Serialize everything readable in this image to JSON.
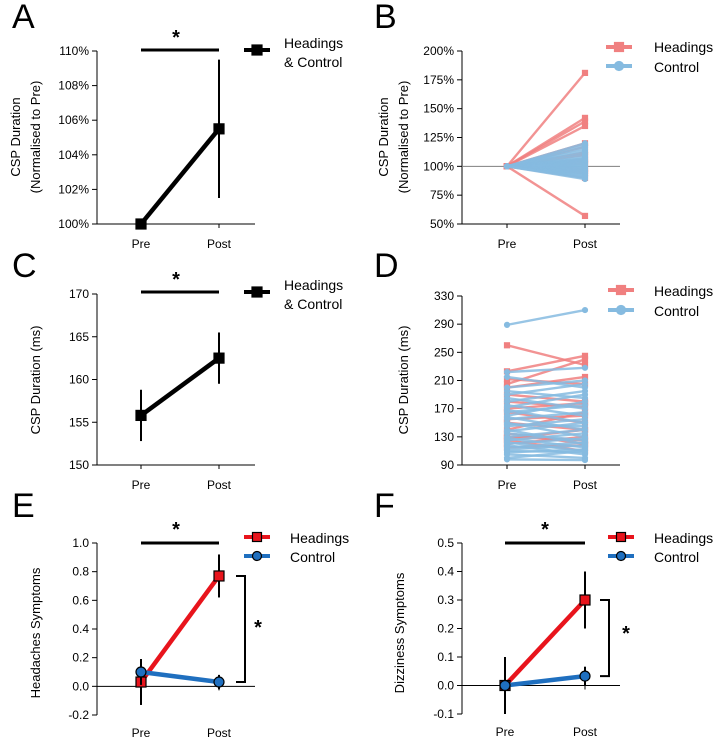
{
  "colors": {
    "black": "#000000",
    "headings": "#e8141c",
    "control": "#1f6fbf",
    "headings_light": "#f08080",
    "control_light": "#86bbe0",
    "headings_marker": "#ee2020",
    "control_marker": "#2a7fd1"
  },
  "chart_data": [
    {
      "panel": "A",
      "type": "line",
      "ylabel": "CSP Duration (Normalised to Pre)",
      "categories": [
        "Pre",
        "Post"
      ],
      "yticks": [
        "100%",
        "102%",
        "104%",
        "106%",
        "108%",
        "110%"
      ],
      "ylim": [
        100,
        110
      ],
      "series": [
        {
          "name": "Headings & Control",
          "values": [
            100.0,
            105.5
          ],
          "err": [
            0,
            4.0
          ],
          "color": "#000000",
          "marker": "square"
        }
      ],
      "legend": [
        "Headings",
        "& Control"
      ],
      "significance": [
        {
          "label": "*",
          "between": [
            "Pre",
            "Post"
          ]
        }
      ]
    },
    {
      "panel": "B",
      "type": "line",
      "ylabel": "CSP Duration (Normalised to Pre)",
      "categories": [
        "Pre",
        "Post"
      ],
      "yticks": [
        "50%",
        "75%",
        "100%",
        "125%",
        "150%",
        "175%",
        "200%"
      ],
      "ylim": [
        50,
        200
      ],
      "reference_line": 100,
      "series": [
        {
          "name": "Headings",
          "style": "individual",
          "color": "#f08080",
          "marker": "square",
          "post_values": [
            181,
            142,
            139,
            135,
            120,
            117,
            112,
            110,
            106,
            104,
            102,
            98,
            96,
            94,
            90,
            57
          ]
        },
        {
          "name": "Control",
          "style": "individual",
          "color": "#86bbe0",
          "marker": "circle",
          "post_values": [
            120,
            118,
            116,
            114,
            112,
            110,
            108,
            107,
            106,
            105,
            104,
            103,
            102,
            101,
            100,
            99,
            98,
            97,
            96,
            95,
            94,
            93,
            92,
            91,
            90,
            89
          ]
        }
      ],
      "legend": [
        "Headings",
        "Control"
      ]
    },
    {
      "panel": "C",
      "type": "line",
      "ylabel": "CSP Duration (ms)",
      "categories": [
        "Pre",
        "Post"
      ],
      "yticks": [
        "150",
        "155",
        "160",
        "165",
        "170"
      ],
      "ylim": [
        150,
        170
      ],
      "series": [
        {
          "name": "Headings & Control",
          "values": [
            155.8,
            162.5
          ],
          "err": [
            3.0,
            3.0
          ],
          "color": "#000000",
          "marker": "square"
        }
      ],
      "legend": [
        "Headings",
        "& Control"
      ],
      "significance": [
        {
          "label": "*",
          "between": [
            "Pre",
            "Post"
          ]
        }
      ]
    },
    {
      "panel": "D",
      "type": "line",
      "ylabel": "CSP Duration (ms)",
      "categories": [
        "Pre",
        "Post"
      ],
      "yticks": [
        "90",
        "130",
        "170",
        "210",
        "250",
        "290",
        "330"
      ],
      "ylim": [
        90,
        330
      ],
      "series": [
        {
          "name": "Headings",
          "style": "individual",
          "color": "#f08080",
          "marker": "square",
          "pairs": [
            [
              260,
              232
            ],
            [
              223,
              245
            ],
            [
              212,
              205
            ],
            [
              205,
              240
            ],
            [
              200,
              215
            ],
            [
              190,
              180
            ],
            [
              180,
              172
            ],
            [
              170,
              178
            ],
            [
              165,
              150
            ],
            [
              155,
              160
            ],
            [
              150,
              140
            ],
            [
              140,
              165
            ],
            [
              135,
              120
            ],
            [
              130,
              125
            ],
            [
              128,
              140
            ],
            [
              125,
              110
            ],
            [
              120,
              130
            ],
            [
              115,
              118
            ]
          ]
        },
        {
          "name": "Control",
          "style": "individual",
          "color": "#86bbe0",
          "marker": "circle",
          "pairs": [
            [
              289,
              310
            ],
            [
              222,
              228
            ],
            [
              215,
              200
            ],
            [
              200,
              210
            ],
            [
              195,
              185
            ],
            [
              190,
              205
            ],
            [
              185,
              170
            ],
            [
              180,
              195
            ],
            [
              175,
              160
            ],
            [
              172,
              190
            ],
            [
              168,
              150
            ],
            [
              165,
              175
            ],
            [
              160,
              180
            ],
            [
              158,
              140
            ],
            [
              155,
              165
            ],
            [
              150,
              130
            ],
            [
              148,
              145
            ],
            [
              145,
              155
            ],
            [
              140,
              120
            ],
            [
              138,
              150
            ],
            [
              135,
              125
            ],
            [
              130,
              140
            ],
            [
              128,
              115
            ],
            [
              125,
              135
            ],
            [
              122,
              110
            ],
            [
              120,
              128
            ],
            [
              118,
              105
            ],
            [
              115,
              122
            ],
            [
              112,
              118
            ],
            [
              110,
              108
            ],
            [
              108,
              112
            ],
            [
              105,
              100
            ],
            [
              100,
              110
            ],
            [
              98,
              97
            ]
          ]
        }
      ],
      "legend": [
        "Headings",
        "Control"
      ]
    },
    {
      "panel": "E",
      "type": "line",
      "ylabel": "Headaches Symptoms",
      "categories": [
        "Pre",
        "Post"
      ],
      "yticks": [
        "-0.2",
        "0.0",
        "0.2",
        "0.4",
        "0.6",
        "0.8",
        "1.0"
      ],
      "ylim": [
        -0.2,
        1.0
      ],
      "series": [
        {
          "name": "Headings",
          "values": [
            0.03,
            0.77
          ],
          "err": [
            0.16,
            0.15
          ],
          "color": "#e8141c",
          "marker": "square"
        },
        {
          "name": "Control",
          "values": [
            0.1,
            0.03
          ],
          "err": [
            0.09,
            0.05
          ],
          "color": "#1f6fbf",
          "marker": "circle"
        }
      ],
      "legend": [
        "Headings",
        "Control"
      ],
      "significance": [
        {
          "label": "*",
          "between": [
            "Pre",
            "Post"
          ]
        },
        {
          "label": "*",
          "between": [
            "Headings",
            "Control"
          ],
          "at": "Post"
        }
      ]
    },
    {
      "panel": "F",
      "type": "line",
      "ylabel": "Dizziness Symptoms",
      "categories": [
        "Pre",
        "Post"
      ],
      "yticks": [
        "-0.1",
        "0.0",
        "0.1",
        "0.2",
        "0.3",
        "0.4",
        "0.5"
      ],
      "ylim": [
        -0.1,
        0.5
      ],
      "series": [
        {
          "name": "Headings",
          "values": [
            0.0,
            0.3
          ],
          "err": [
            0.1,
            0.1
          ],
          "color": "#e8141c",
          "marker": "square"
        },
        {
          "name": "Control",
          "values": [
            0.0,
            0.033
          ],
          "err": [
            0.0,
            0.033
          ],
          "color": "#1f6fbf",
          "marker": "circle"
        }
      ],
      "legend": [
        "Headings",
        "Control"
      ],
      "significance": [
        {
          "label": "*",
          "between": [
            "Pre",
            "Post"
          ]
        },
        {
          "label": "*",
          "between": [
            "Headings",
            "Control"
          ],
          "at": "Post"
        }
      ]
    }
  ]
}
